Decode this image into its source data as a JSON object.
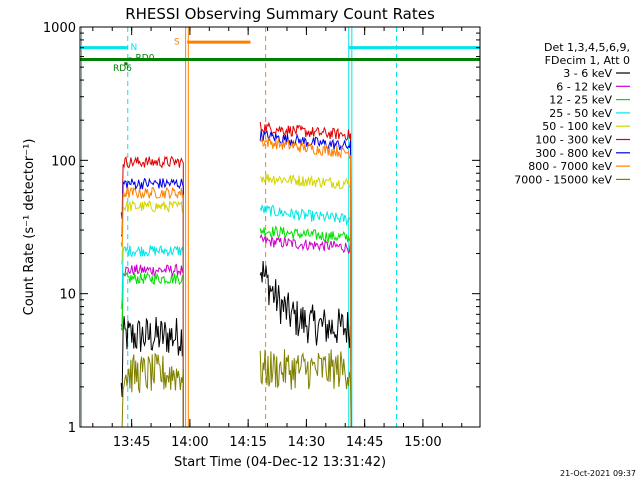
{
  "chart_data": {
    "type": "line",
    "title": "RHESSI Observing Summary Count Rates",
    "xlabel": "Start Time (04-Dec-12 13:31:42)",
    "ylabel": "Count Rate (s⁻¹ detector⁻¹)",
    "yscale": "log",
    "ylim": [
      1,
      1000
    ],
    "xlim_min": [
      0,
      103
    ],
    "ytick_labels": [
      "1",
      "10",
      "100",
      "1000"
    ],
    "xticks": [
      {
        "m": 13.3,
        "label": "13:45"
      },
      {
        "m": 28.3,
        "label": "14:00"
      },
      {
        "m": 43.3,
        "label": "14:15"
      },
      {
        "m": 58.3,
        "label": "14:30"
      },
      {
        "m": 73.3,
        "label": "14:45"
      },
      {
        "m": 88.3,
        "label": "15:00"
      }
    ],
    "legend_header": [
      "Det 1,3,4,5,6,9,",
      "FDecim 1, Att 0"
    ],
    "legend_position": "right",
    "series": [
      {
        "name": "3 - 6 keV",
        "color": "#000000",
        "d1": 4.8,
        "d2_start": 16,
        "d2_end": 5.5,
        "d2_tau": 4
      },
      {
        "name": "6 - 12 keV",
        "color": "#cc00cc",
        "d1": 15,
        "d2_start": 25,
        "d2_end": 20,
        "d2_tau": 30
      },
      {
        "name": "12 - 25 keV",
        "color": "#00e000",
        "d1": 13,
        "d2_start": 30,
        "d2_end": 24,
        "d2_tau": 25
      },
      {
        "name": "25 - 50 keV",
        "color": "#00e5e5",
        "d1": 21,
        "d2_start": 43,
        "d2_end": 33,
        "d2_tau": 20
      },
      {
        "name": "50 - 100 keV",
        "color": "#d4d400",
        "d1": 45,
        "d2_start": 75,
        "d2_end": 62,
        "d2_tau": 25
      },
      {
        "name": "100 - 300 keV",
        "color": "#e00000",
        "d1": 97,
        "d2_start": 178,
        "d2_end": 140,
        "d2_tau": 25
      },
      {
        "name": "300 - 800 keV",
        "color": "#0000e6",
        "d1": 67,
        "d2_start": 155,
        "d2_end": 110,
        "d2_tau": 25
      },
      {
        "name": "800 - 7000 keV",
        "color": "#ff8000",
        "d1": 57,
        "d2_start": 140,
        "d2_end": 98,
        "d2_tau": 25
      },
      {
        "name": "7000 - 15000 keV",
        "color": "#808000",
        "d1": 2.5,
        "d2_start": 2.7,
        "d2_end": 2.7,
        "d2_tau": 10
      }
    ],
    "data_intervals_min": [
      [
        10.6,
        26.6
      ],
      [
        46.4,
        69.8
      ]
    ],
    "saa_bars": [
      {
        "x0": 0,
        "x1": 12.3,
        "y": 700
      },
      {
        "x0": 69.2,
        "x1": 103,
        "y": 700
      }
    ],
    "eclipse_bar": {
      "x0": 0,
      "x1": 103,
      "y": 570
    },
    "night_bar": {
      "x0": 27.6,
      "x1": 43.9,
      "y": 770
    },
    "annotations": [
      {
        "text": "N",
        "x": 13.0,
        "y": 720,
        "color": "#00e5e5"
      },
      {
        "text": "RD6",
        "x": 8.5,
        "y": 500,
        "color": "#007f00"
      },
      {
        "text": "RD0",
        "x": 14.3,
        "y": 600,
        "color": "#007f00"
      },
      {
        "text": "S",
        "x": 24.2,
        "y": 790,
        "color": "#ff8000"
      }
    ],
    "markers": [
      {
        "x": 11.8,
        "y": 530,
        "color": "#007f00"
      },
      {
        "x": 12.9,
        "y": 575,
        "color": "#007f00"
      }
    ],
    "vlines": [
      {
        "x": 0.4,
        "color": "#00e5e5",
        "style": "solid"
      },
      {
        "x": 12.3,
        "color": "#00e5e5",
        "style": "dashed"
      },
      {
        "x": 27.2,
        "color": "#ff8000",
        "style": "solid"
      },
      {
        "x": 27.9,
        "color": "#ff8000",
        "style": "solid"
      },
      {
        "x": 47.8,
        "color": "#ff8000",
        "style": "dashed"
      },
      {
        "x": 69.2,
        "color": "#00e5e5",
        "style": "solid"
      },
      {
        "x": 70.0,
        "color": "#00e5e5",
        "style": "solid"
      },
      {
        "x": 81.5,
        "color": "#00e5e5",
        "style": "dashed"
      }
    ],
    "grid": false,
    "timestamp": "21-Oct-2021 09:37"
  }
}
